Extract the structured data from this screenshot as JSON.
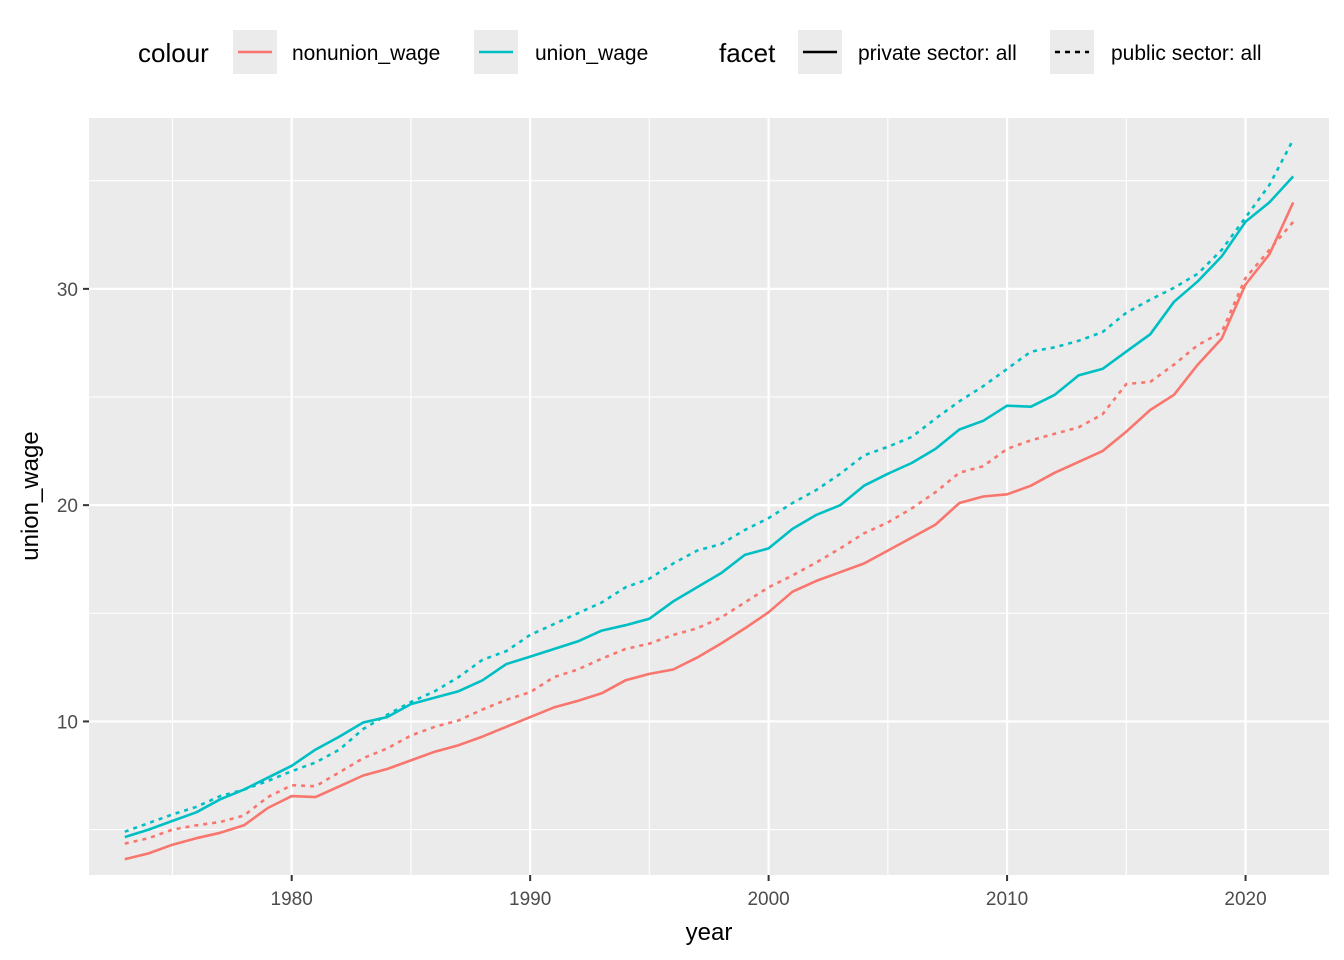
{
  "chart_data": {
    "type": "line",
    "xlabel": "year",
    "ylabel": "union_wage",
    "xlim": [
      1971.5,
      2023.5
    ],
    "ylim": [
      2.9,
      37.9
    ],
    "x_ticks": [
      1980,
      1990,
      2000,
      2010,
      2020
    ],
    "y_ticks": [
      10,
      20,
      30
    ],
    "grid": true,
    "legend_position": "top",
    "legend": {
      "colour_title": "colour",
      "facet_title": "facet",
      "colour_items": [
        {
          "label": "nonunion_wage",
          "color": "#F8766D"
        },
        {
          "label": "union_wage",
          "color": "#00BFC4"
        }
      ],
      "facet_items": [
        {
          "label": "private sector: all",
          "dash": "solid"
        },
        {
          "label": "public sector: all",
          "dash": "dotted"
        }
      ]
    },
    "x": [
      1973,
      1974,
      1975,
      1976,
      1977,
      1978,
      1979,
      1980,
      1981,
      1982,
      1983,
      1984,
      1985,
      1986,
      1987,
      1988,
      1989,
      1990,
      1991,
      1992,
      1993,
      1994,
      1995,
      1996,
      1997,
      1998,
      1999,
      2000,
      2001,
      2002,
      2003,
      2004,
      2005,
      2006,
      2007,
      2008,
      2009,
      2010,
      2011,
      2012,
      2013,
      2014,
      2015,
      2016,
      2017,
      2018,
      2019,
      2020,
      2021,
      2022
    ],
    "series": [
      {
        "name": "nonunion_wage",
        "facet": "private sector: all",
        "color": "#F8766D",
        "dash": "solid",
        "values": [
          3.63,
          3.9,
          4.3,
          4.6,
          4.85,
          5.2,
          6.0,
          6.55,
          6.5,
          7.0,
          7.5,
          7.8,
          8.2,
          8.6,
          8.9,
          9.3,
          9.75,
          10.2,
          10.65,
          10.95,
          11.3,
          11.9,
          12.2,
          12.4,
          12.95,
          13.6,
          14.3,
          15.05,
          16.0,
          16.5,
          16.9,
          17.3,
          17.9,
          18.5,
          19.1,
          20.1,
          20.4,
          20.5,
          20.9,
          21.5,
          22.0,
          22.5,
          23.4,
          24.4,
          25.1,
          26.5,
          27.7,
          30.2,
          31.6,
          34.0
        ]
      },
      {
        "name": "union_wage",
        "facet": "private sector: all",
        "color": "#00BFC4",
        "dash": "solid",
        "values": [
          4.65,
          5.0,
          5.4,
          5.8,
          6.4,
          6.85,
          7.4,
          7.95,
          8.7,
          9.3,
          9.95,
          10.2,
          10.8,
          11.1,
          11.4,
          11.9,
          12.65,
          13.0,
          13.35,
          13.7,
          14.2,
          14.45,
          14.75,
          15.55,
          16.2,
          16.85,
          17.7,
          18.0,
          18.9,
          19.55,
          20.0,
          20.9,
          21.45,
          21.95,
          22.6,
          23.5,
          23.9,
          24.6,
          24.55,
          25.1,
          26.0,
          26.3,
          27.1,
          27.9,
          29.4,
          30.35,
          31.5,
          33.1,
          34.0,
          35.2
        ]
      },
      {
        "name": "nonunion_wage",
        "facet": "public sector: all",
        "color": "#F8766D",
        "dash": "dotted",
        "values": [
          4.35,
          4.6,
          5.0,
          5.2,
          5.35,
          5.65,
          6.5,
          7.05,
          7.0,
          7.65,
          8.3,
          8.75,
          9.35,
          9.75,
          10.05,
          10.55,
          11.0,
          11.35,
          12.05,
          12.4,
          12.9,
          13.35,
          13.6,
          14.0,
          14.3,
          14.8,
          15.5,
          16.2,
          16.75,
          17.35,
          18.0,
          18.7,
          19.2,
          19.85,
          20.6,
          21.5,
          21.8,
          22.6,
          23.0,
          23.3,
          23.6,
          24.2,
          25.6,
          25.7,
          26.5,
          27.4,
          28.0,
          30.5,
          31.8,
          33.1
        ]
      },
      {
        "name": "union_wage",
        "facet": "public sector: all",
        "color": "#00BFC4",
        "dash": "dotted",
        "values": [
          4.9,
          5.3,
          5.7,
          6.05,
          6.55,
          6.85,
          7.25,
          7.7,
          8.1,
          8.7,
          9.65,
          10.3,
          10.9,
          11.4,
          12.05,
          12.85,
          13.25,
          14.0,
          14.5,
          15.0,
          15.5,
          16.2,
          16.6,
          17.3,
          17.9,
          18.2,
          18.85,
          19.4,
          20.1,
          20.7,
          21.45,
          22.3,
          22.7,
          23.15,
          24.0,
          24.8,
          25.5,
          26.3,
          27.1,
          27.3,
          27.6,
          28.0,
          28.9,
          29.5,
          30.05,
          30.7,
          31.8,
          33.3,
          34.8,
          36.9
        ]
      }
    ]
  }
}
